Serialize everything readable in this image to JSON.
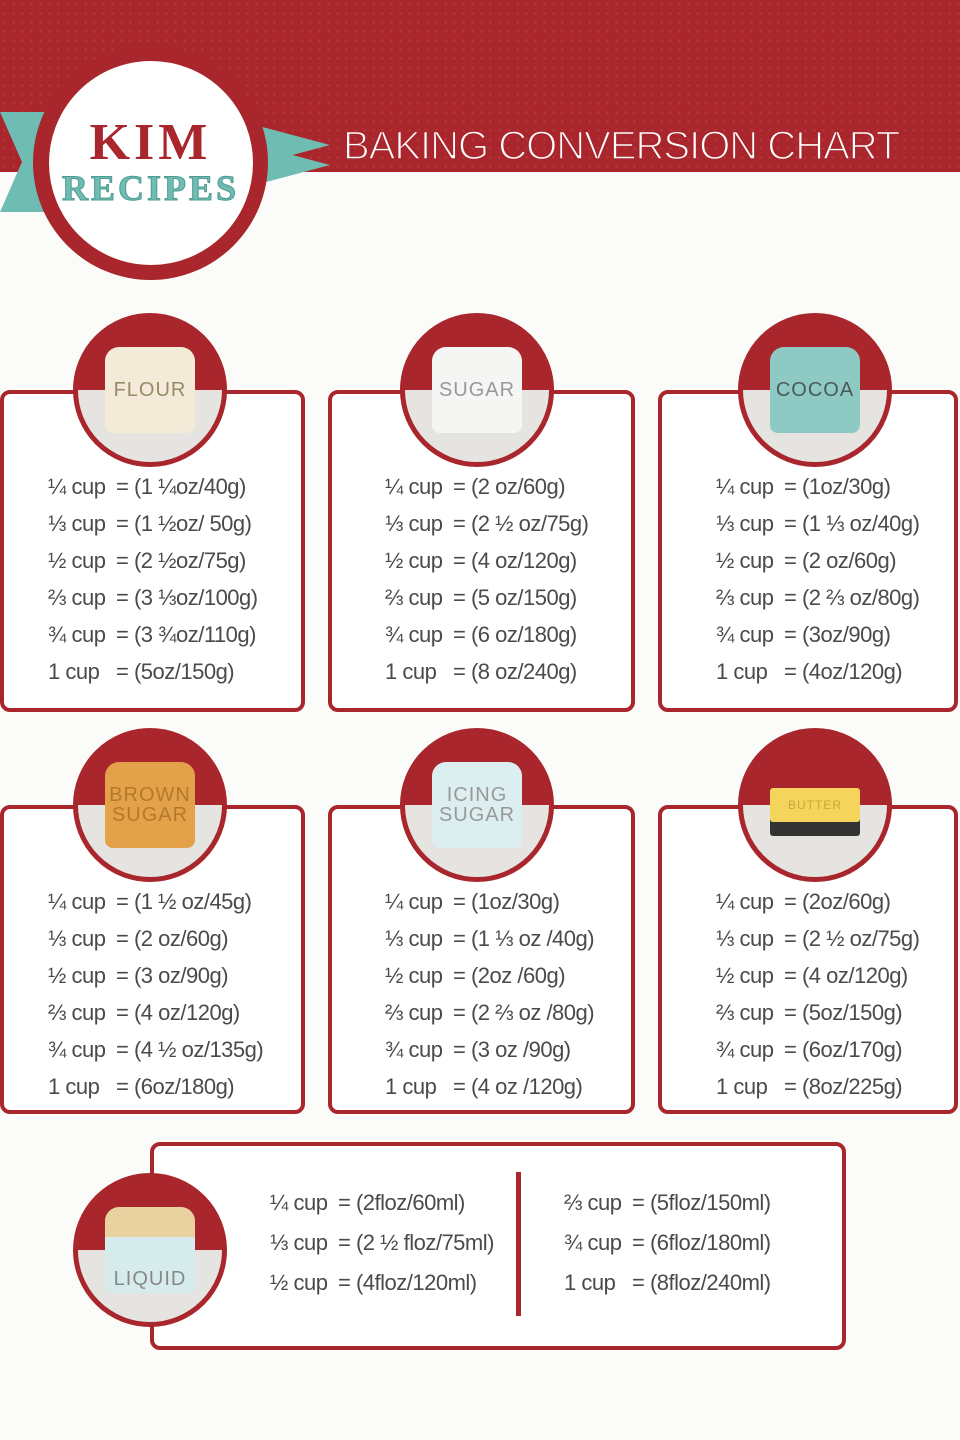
{
  "header": {
    "logo_line1": "KIM",
    "logo_line2": "RECIPES",
    "title": "BAKING CONVERSION CHART"
  },
  "colors": {
    "brand_red": "#a8262c",
    "teal": "#6fbcb3",
    "text": "#4a4a4a"
  },
  "cards": [
    {
      "label": "FLOUR",
      "icon": "flour-sack-icon",
      "rows": [
        [
          "¼ cup",
          "= (1 ¼oz/40g)"
        ],
        [
          "⅓ cup",
          "= (1 ½oz/ 50g)"
        ],
        [
          "½ cup",
          "= (2 ½oz/75g)"
        ],
        [
          "⅔ cup",
          "= (3 ⅓oz/100g)"
        ],
        [
          "¾ cup",
          "= (3 ¾oz/110g)"
        ],
        [
          "1 cup",
          "= (5oz/150g)"
        ]
      ]
    },
    {
      "label": "SUGAR",
      "icon": "sugar-sack-icon",
      "rows": [
        [
          "¼ cup",
          "= (2 oz/60g)"
        ],
        [
          "⅓ cup",
          "= (2 ½ oz/75g)"
        ],
        [
          "½ cup",
          "= (4 oz/120g)"
        ],
        [
          "⅔ cup",
          "= (5 oz/150g)"
        ],
        [
          "¾ cup",
          "= (6 oz/180g)"
        ],
        [
          "1 cup",
          "= (8 oz/240g)"
        ]
      ]
    },
    {
      "label": "COCOA",
      "icon": "cocoa-sack-icon",
      "rows": [
        [
          "¼ cup",
          "= (1oz/30g)"
        ],
        [
          "⅓ cup",
          "= (1 ⅓ oz/40g)"
        ],
        [
          "½ cup",
          "= (2 oz/60g)"
        ],
        [
          "⅔ cup",
          "= (2 ⅔ oz/80g)"
        ],
        [
          "¾ cup",
          "= (3oz/90g)"
        ],
        [
          "1 cup",
          "= (4oz/120g)"
        ]
      ]
    },
    {
      "label": "BROWN SUGAR",
      "icon": "brown-sugar-sack-icon",
      "rows": [
        [
          "¼ cup",
          "= (1 ½ oz/45g)"
        ],
        [
          "⅓ cup",
          "= (2 oz/60g)"
        ],
        [
          "½ cup",
          "= (3 oz/90g)"
        ],
        [
          "⅔ cup",
          "= (4 oz/120g)"
        ],
        [
          "¾ cup",
          "= (4 ½ oz/135g)"
        ],
        [
          "1 cup",
          "= (6oz/180g)"
        ]
      ]
    },
    {
      "label": "ICING SUGAR",
      "icon": "icing-sugar-sieve-icon",
      "rows": [
        [
          "¼ cup",
          "= (1oz/30g)"
        ],
        [
          "⅓ cup",
          "= (1 ⅓ oz /40g)"
        ],
        [
          "½ cup",
          "= (2oz /60g)"
        ],
        [
          "⅔ cup",
          "= (2 ⅔ oz /80g)"
        ],
        [
          "¾ cup",
          "= (3 oz /90g)"
        ],
        [
          "1 cup",
          "= (4 oz /120g)"
        ]
      ]
    },
    {
      "label": "BUTTER",
      "icon": "butter-block-icon",
      "rows": [
        [
          "¼ cup",
          "= (2oz/60g)"
        ],
        [
          "⅓ cup",
          "= (2 ½ oz/75g)"
        ],
        [
          "½ cup",
          "= (4 oz/120g)"
        ],
        [
          "⅔ cup",
          "= (5oz/150g)"
        ],
        [
          "¾ cup",
          "= (6oz/170g)"
        ],
        [
          "1 cup",
          "= (8oz/225g)"
        ]
      ]
    }
  ],
  "liquid": {
    "label": "LIQUID",
    "icon": "measuring-jug-icon",
    "left": [
      [
        "¼ cup",
        "= (2floz/60ml)"
      ],
      [
        "⅓ cup",
        "= (2 ½ floz/75ml)"
      ],
      [
        "½ cup",
        "= (4floz/120ml)"
      ]
    ],
    "right": [
      [
        "⅔ cup",
        "= (5floz/150ml)"
      ],
      [
        "¾ cup",
        "= (6floz/180ml)"
      ],
      [
        "1 cup",
        "= (8floz/240ml)"
      ]
    ]
  }
}
